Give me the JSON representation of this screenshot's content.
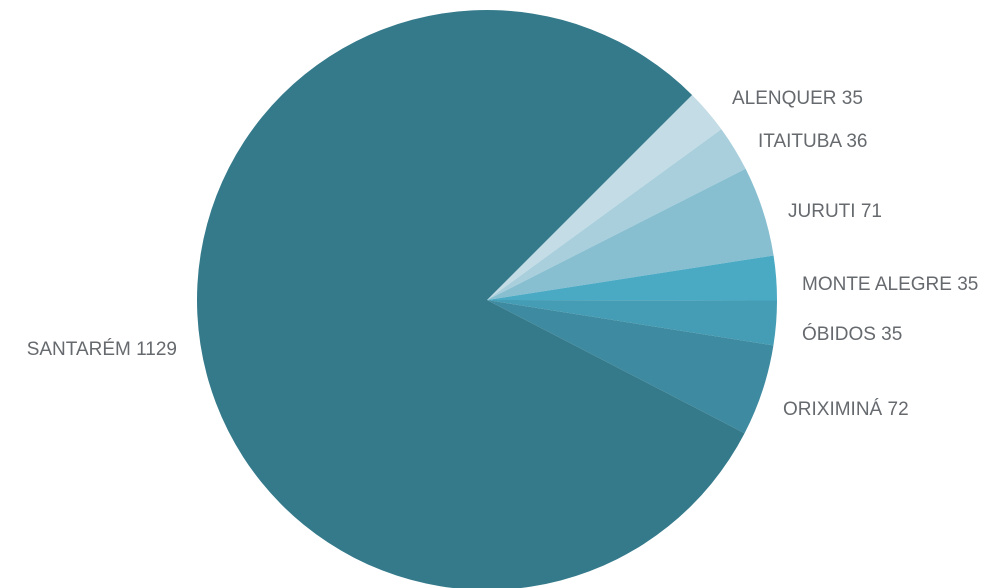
{
  "chart_data": {
    "type": "pie",
    "title": "",
    "legend": "none",
    "slices": [
      {
        "label": "ALENQUER",
        "value": 35,
        "color": "#c3dce5",
        "display": "ALENQUER 35"
      },
      {
        "label": "ITAITUBA",
        "value": 36,
        "color": "#a9cfdc",
        "display": "ITAITUBA 36"
      },
      {
        "label": "JURUTI",
        "value": 71,
        "color": "#87bfd1",
        "display": "JURUTI 71"
      },
      {
        "label": "MONTE ALEGRE",
        "value": 35,
        "color": "#4aaac4",
        "display": "MONTE ALEGRE 35"
      },
      {
        "label": "ÓBIDOS",
        "value": 35,
        "color": "#449db4",
        "display": "ÓBIDOS 35"
      },
      {
        "label": "ORIXIMINÁ",
        "value": 72,
        "color": "#3e8aa0",
        "display": "ORIXIMINÁ 72"
      },
      {
        "label": "SANTARÉM",
        "value": 1129,
        "color": "#347a8b",
        "display": "SANTARÉM 1129"
      }
    ]
  }
}
